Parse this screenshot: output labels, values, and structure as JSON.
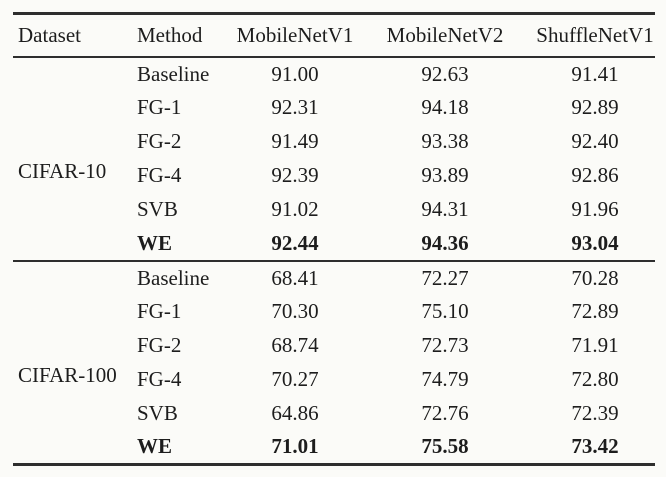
{
  "page": {
    "background_color": "#fbfbf8",
    "text_color": "#1d1d1d",
    "rule_color": "#2e2e2e"
  },
  "table": {
    "columns": [
      "Dataset",
      "Method",
      "MobileNetV1",
      "MobileNetV2",
      "ShuffleNetV1"
    ],
    "sections": [
      {
        "dataset": "CIFAR-10",
        "rows": [
          {
            "method": "Baseline",
            "values": [
              "91.00",
              "92.63",
              "91.41"
            ],
            "bold": false
          },
          {
            "method": "FG-1",
            "values": [
              "92.31",
              "94.18",
              "92.89"
            ],
            "bold": false
          },
          {
            "method": "FG-2",
            "values": [
              "91.49",
              "93.38",
              "92.40"
            ],
            "bold": false
          },
          {
            "method": "FG-4",
            "values": [
              "92.39",
              "93.89",
              "92.86"
            ],
            "bold": false
          },
          {
            "method": "SVB",
            "values": [
              "91.02",
              "94.31",
              "91.96"
            ],
            "bold": false
          },
          {
            "method": "WE",
            "values": [
              "92.44",
              "94.36",
              "93.04"
            ],
            "bold": true
          }
        ]
      },
      {
        "dataset": "CIFAR-100",
        "rows": [
          {
            "method": "Baseline",
            "values": [
              "68.41",
              "72.27",
              "70.28"
            ],
            "bold": false
          },
          {
            "method": "FG-1",
            "values": [
              "70.30",
              "75.10",
              "72.89"
            ],
            "bold": false
          },
          {
            "method": "FG-2",
            "values": [
              "68.74",
              "72.73",
              "71.91"
            ],
            "bold": false
          },
          {
            "method": "FG-4",
            "values": [
              "70.27",
              "74.79",
              "72.80"
            ],
            "bold": false
          },
          {
            "method": "SVB",
            "values": [
              "64.86",
              "72.76",
              "72.39"
            ],
            "bold": false
          },
          {
            "method": "WE",
            "values": [
              "71.01",
              "75.58",
              "73.42"
            ],
            "bold": true
          }
        ]
      }
    ]
  }
}
